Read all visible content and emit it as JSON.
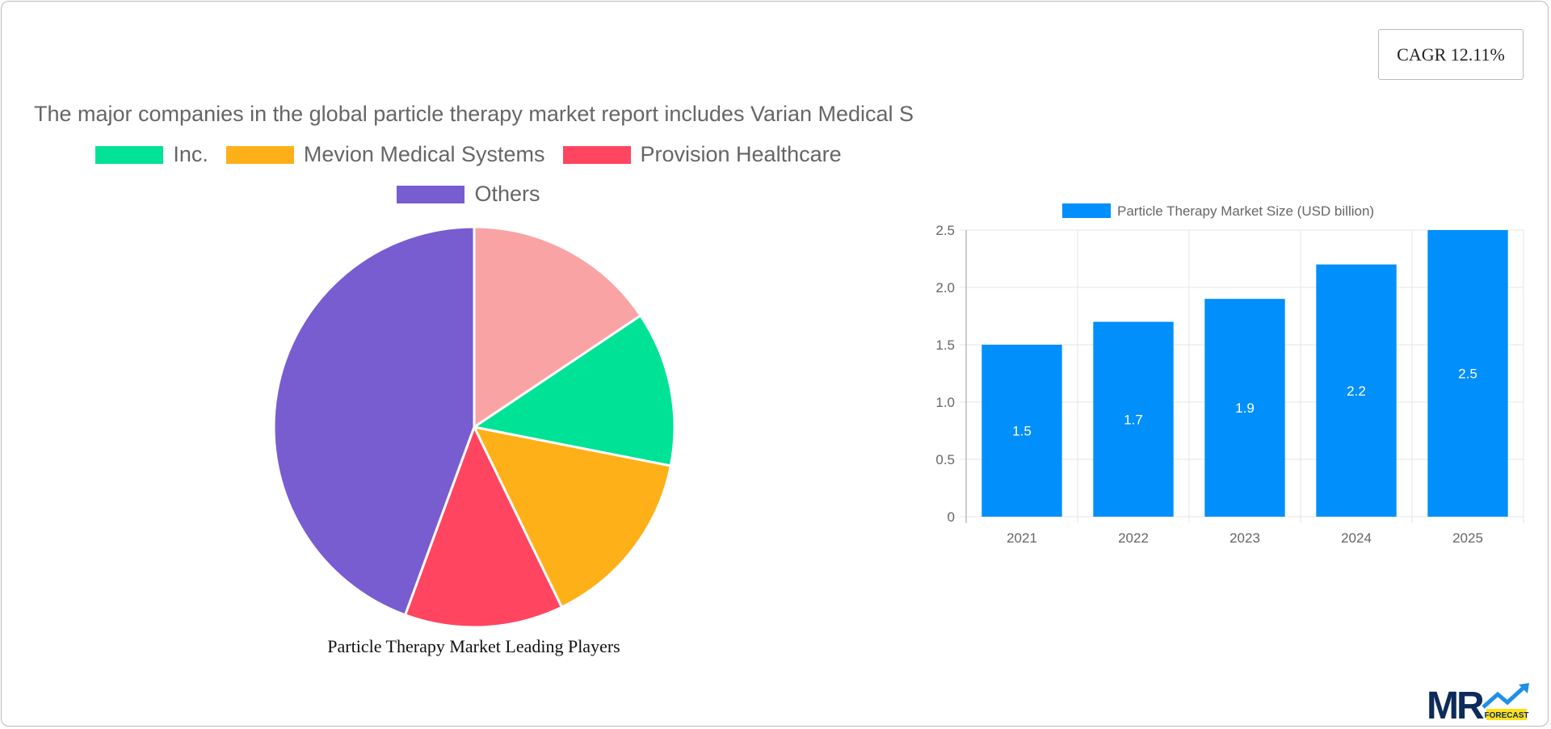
{
  "cagr_label": "CAGR 12.11%",
  "chart_data": [
    {
      "type": "pie",
      "title": "Particle Therapy Market Leading Players",
      "legend_placement": "top",
      "slices": [
        {
          "label": "The major companies in the global particle therapy market report includes Varian Medical S",
          "value": 15.6,
          "color": "#f9a3a4"
        },
        {
          "label": "Inc.",
          "value": 12.5,
          "color": "#00e396"
        },
        {
          "label": "Mevion Medical Systems",
          "value": 14.7,
          "color": "#feb019"
        },
        {
          "label": "Provision Healthcare",
          "value": 12.8,
          "color": "#ff4560"
        },
        {
          "label": "Others",
          "value": 44.4,
          "color": "#775dd0"
        }
      ]
    },
    {
      "type": "bar",
      "categories": [
        "2021",
        "2022",
        "2023",
        "2024",
        "2025"
      ],
      "series": [
        {
          "name": "Particle Therapy Market Size (USD billion)",
          "values": [
            1.5,
            1.7,
            1.9,
            2.2,
            2.5
          ],
          "color": "#008ffb"
        }
      ],
      "ylim": [
        0,
        2.5
      ],
      "yticks": [
        "0",
        "0.5",
        "1.0",
        "1.5",
        "2.0",
        "2.5"
      ],
      "grid": true,
      "legend_placement": "top"
    }
  ],
  "logo": {
    "text": "MR",
    "badge": "FORECAST"
  }
}
